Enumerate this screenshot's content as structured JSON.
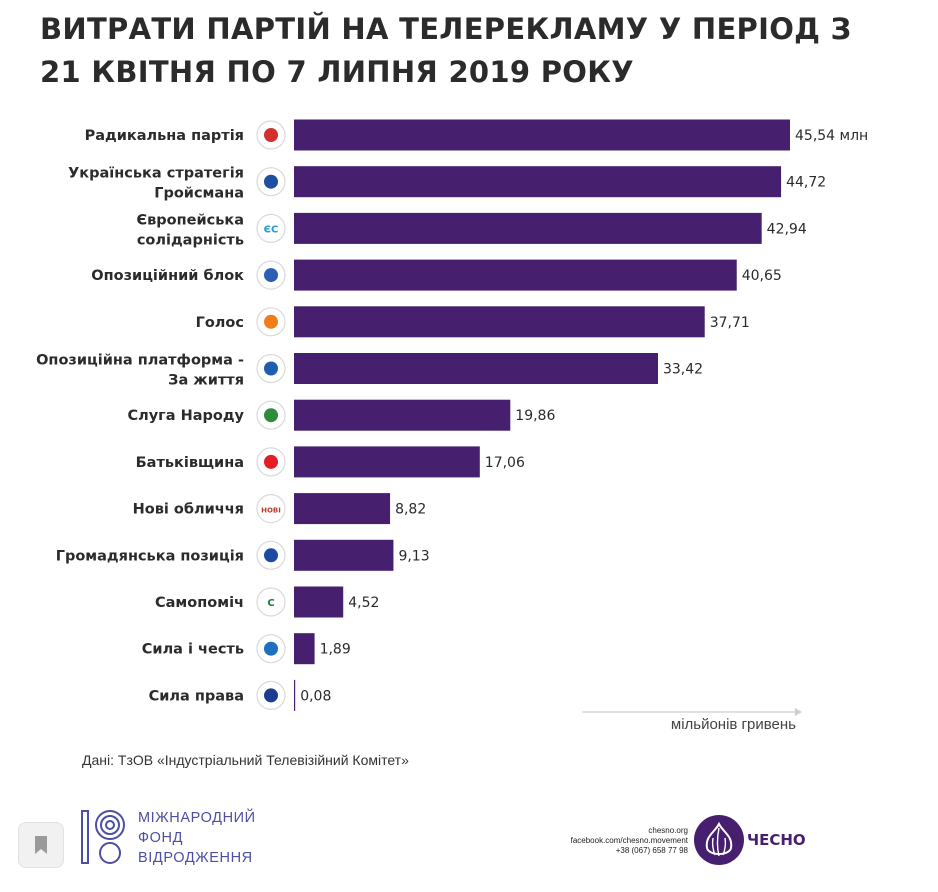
{
  "title": {
    "line1": "ВИТРАТИ ПАРТІЙ НА ТЕЛЕРЕКЛАМУ У ПЕРІОД З",
    "line2": "21 КВІТНЯ ПО 7 ЛИПНЯ 2019 РОКУ"
  },
  "chart_data": {
    "type": "bar",
    "orientation": "horizontal",
    "title": "ВИТРАТИ ПАРТІЙ НА ТЕЛЕРЕКЛАМУ У ПЕРІОД З 21 КВІТНЯ ПО 7 ЛИПНЯ 2019 РОКУ",
    "xlabel": "мільйонів гривень",
    "unit_suffix": "млн",
    "xlim": [
      0,
      45.54
    ],
    "bar_color": "#46206e",
    "categories": [
      [
        "Радикальна партія"
      ],
      [
        "Українська стратегія",
        "Гройсмана"
      ],
      [
        "Європейська",
        "солідарність"
      ],
      [
        "Опозиційний блок"
      ],
      [
        "Голос"
      ],
      [
        "Опозиційна платформа -",
        "За життя"
      ],
      [
        "Слуга Народу"
      ],
      [
        "Батьківщина"
      ],
      [
        "Нові обличчя"
      ],
      [
        "Громадянська позиція"
      ],
      [
        "Самопоміч"
      ],
      [
        "Сила і честь"
      ],
      [
        "Сила права"
      ]
    ],
    "values": [
      45.54,
      44.72,
      42.94,
      40.65,
      37.71,
      33.42,
      19.86,
      17.06,
      8.82,
      9.13,
      4.52,
      1.89,
      0.08
    ],
    "value_labels": [
      "45,54 млн",
      "44,72",
      "42,94",
      "40,65",
      "37,71",
      "33,42",
      "19,86",
      "17,06",
      "8,82",
      "9,13",
      "4,52",
      "1,89",
      "0,08"
    ],
    "logos": [
      {
        "icon": "radical-party-pitchfork-icon",
        "color": "#d32f2f",
        "text": ""
      },
      {
        "icon": "ukrainian-strategy-icon",
        "color": "#1e4fa0",
        "text": ""
      },
      {
        "icon": "european-solidarity-icon",
        "color": "#1f9bd7",
        "text": "ЄС"
      },
      {
        "icon": "opposition-bloc-icon",
        "color": "#2c5fb3",
        "text": ""
      },
      {
        "icon": "holos-icon",
        "color": "#f07d1a",
        "text": ""
      },
      {
        "icon": "opposition-platform-icon",
        "color": "#1f5db0",
        "text": ""
      },
      {
        "icon": "servant-of-people-icon",
        "color": "#2e8b3a",
        "text": ""
      },
      {
        "icon": "batkivshchyna-heart-icon",
        "color": "#e31e24",
        "text": ""
      },
      {
        "icon": "new-faces-icon",
        "color": "#c0392b",
        "text": "НОВІ"
      },
      {
        "icon": "civic-position-hand-icon",
        "color": "#1c4aa0",
        "text": ""
      },
      {
        "icon": "samopomich-icon",
        "color": "#1a7a36",
        "text": "С"
      },
      {
        "icon": "strength-and-honor-icon",
        "color": "#1f6fbf",
        "text": ""
      },
      {
        "icon": "power-of-law-icon",
        "color": "#1c3d8f",
        "text": ""
      }
    ]
  },
  "source": "Дані: ТзОВ «Індустріальний Телевізійний Комітет»",
  "footer": {
    "irf_lines": [
      "МІЖНАРОДНИЙ",
      "ФОНД",
      "ВІДРОДЖЕННЯ"
    ],
    "irf_color": "#4c4fa3",
    "chesno_site": "chesno.org",
    "chesno_facebook": "facebook.com/chesno.movement",
    "chesno_phone": "+38 (067) 658 77 98",
    "chesno_name": "ЧЕСНО",
    "chesno_color": "#46206e"
  }
}
